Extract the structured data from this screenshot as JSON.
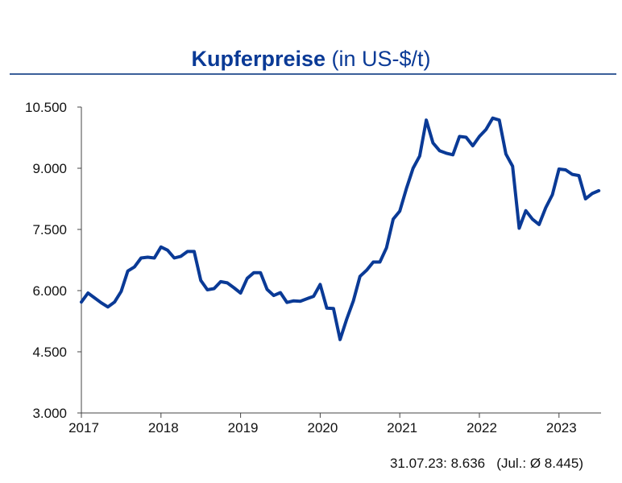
{
  "title": {
    "bold": "Kupferpreise",
    "rest": " (in US-$/t)"
  },
  "footer": "31.07.23: 8.636   (Jul.: Ø 8.445)",
  "colors": {
    "line": "#0a3a96",
    "title": "#0a3a96",
    "rule": "#3b5f9a"
  },
  "chart_data": {
    "type": "line",
    "title": "Kupferpreise (in US-$/t)",
    "xlabel": "",
    "ylabel": "",
    "ylim": [
      3000,
      10500
    ],
    "y_ticks": [
      "3.000",
      "4.500",
      "6.000",
      "7.500",
      "9.000",
      "10.500"
    ],
    "y_tick_values": [
      3000,
      4500,
      6000,
      7500,
      9000,
      10500
    ],
    "x_ticks": [
      "2017",
      "2018",
      "2019",
      "2020",
      "2021",
      "2022",
      "2023"
    ],
    "grid": false,
    "legend": "none",
    "x_start": "2017-01",
    "x_frequency": "monthly",
    "series": [
      {
        "values": [
          5720,
          5940,
          5820,
          5700,
          5600,
          5720,
          5980,
          6480,
          6580,
          6800,
          6820,
          6800,
          7070,
          6990,
          6800,
          6840,
          6960,
          6960,
          6250,
          6020,
          6050,
          6220,
          6190,
          6070,
          5940,
          6300,
          6440,
          6440,
          6030,
          5880,
          5950,
          5710,
          5750,
          5740,
          5800,
          5860,
          6150,
          5570,
          5560,
          4800,
          5300,
          5750,
          6350,
          6500,
          6700,
          6700,
          7050,
          7750,
          7950,
          8500,
          9000,
          9300,
          10180,
          9620,
          9430,
          9370,
          9330,
          9780,
          9760,
          9550,
          9780,
          9950,
          10230,
          10180,
          9350,
          9050,
          7530,
          7960,
          7750,
          7620,
          8030,
          8350,
          8980,
          8960,
          8850,
          8820,
          8250,
          8380,
          8450
        ]
      }
    ]
  }
}
